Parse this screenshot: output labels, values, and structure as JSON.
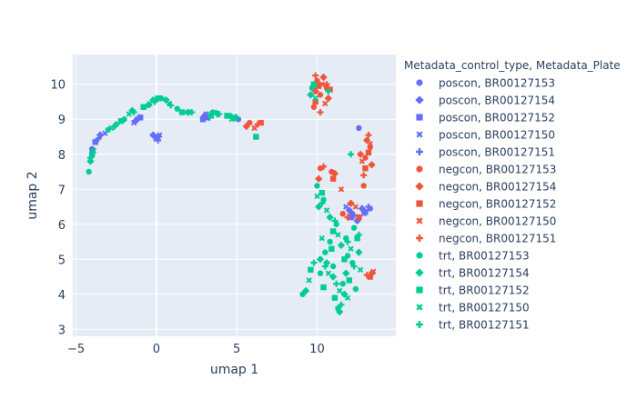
{
  "chart_data": {
    "type": "scatter",
    "title": "",
    "xlabel": "umap 1",
    "ylabel": "umap 2",
    "xlim": [
      -5.2,
      14.9
    ],
    "ylim": [
      2.8,
      10.85
    ],
    "xticks": [
      -5,
      0,
      5,
      10
    ],
    "yticks": [
      3,
      4,
      5,
      6,
      7,
      8,
      9,
      10
    ],
    "xtick_labels": [
      "−5",
      "0",
      "5",
      "10"
    ],
    "ytick_labels": [
      "3",
      "4",
      "5",
      "6",
      "7",
      "8",
      "9",
      "10"
    ],
    "grid": true,
    "legend_title": "Metadata_control_type, Metadata_Plate",
    "legend_position": "right",
    "colors": {
      "poscon": "#636efa",
      "negcon": "#ef553b",
      "trt": "#00cc96",
      "plot_bg": "#e5ecf6",
      "text": "#2a3f5f"
    },
    "series": [
      {
        "name": "poscon, BR00127153",
        "symbol": "circle",
        "color": "#636efa",
        "points": [
          [
            -4.0,
            8.15
          ],
          [
            -1.2,
            9.0
          ],
          [
            0.1,
            8.5
          ],
          [
            3.2,
            9.05
          ],
          [
            5.1,
            9.0
          ],
          [
            12.6,
            8.75
          ],
          [
            12.2,
            6.3
          ],
          [
            13.3,
            6.45
          ]
        ]
      },
      {
        "name": "poscon, BR00127154",
        "symbol": "diamond",
        "color": "#636efa",
        "points": [
          [
            -3.5,
            8.55
          ],
          [
            -1.3,
            8.95
          ],
          [
            -0.2,
            8.55
          ],
          [
            3.0,
            9.1
          ],
          [
            12.0,
            6.4
          ],
          [
            12.8,
            6.45
          ],
          [
            12.5,
            6.1
          ]
        ]
      },
      {
        "name": "poscon, BR00127152",
        "symbol": "square",
        "color": "#636efa",
        "points": [
          [
            -3.8,
            8.35
          ],
          [
            -1.0,
            9.05
          ],
          [
            0.0,
            8.45
          ],
          [
            2.9,
            9.0
          ],
          [
            12.1,
            6.2
          ],
          [
            13.0,
            6.35
          ]
        ]
      },
      {
        "name": "poscon, BR00127150",
        "symbol": "x",
        "color": "#636efa",
        "points": [
          [
            -3.2,
            8.6
          ],
          [
            -1.4,
            8.9
          ],
          [
            0.2,
            8.55
          ],
          [
            3.1,
            9.15
          ],
          [
            11.8,
            6.5
          ],
          [
            12.9,
            6.3
          ]
        ]
      },
      {
        "name": "poscon, BR00127151",
        "symbol": "cross",
        "color": "#636efa",
        "points": [
          [
            -3.6,
            8.45
          ],
          [
            -1.1,
            9.05
          ],
          [
            0.1,
            8.4
          ],
          [
            3.3,
            9.05
          ],
          [
            12.3,
            6.25
          ],
          [
            13.2,
            6.5
          ]
        ]
      },
      {
        "name": "negcon, BR00127153",
        "symbol": "circle",
        "color": "#ef553b",
        "points": [
          [
            10.0,
            10.1
          ],
          [
            10.2,
            9.7
          ],
          [
            9.8,
            9.35
          ],
          [
            10.6,
            9.9
          ],
          [
            13.0,
            7.9
          ],
          [
            13.3,
            8.2
          ],
          [
            12.9,
            7.1
          ],
          [
            10.9,
            7.5
          ],
          [
            5.8,
            8.9
          ],
          [
            10.2,
            7.6
          ],
          [
            11.6,
            6.3
          ],
          [
            13.4,
            4.6
          ]
        ]
      },
      {
        "name": "negcon, BR00127154",
        "symbol": "diamond",
        "color": "#ef553b",
        "points": [
          [
            10.4,
            10.2
          ],
          [
            9.9,
            9.8
          ],
          [
            10.7,
            9.6
          ],
          [
            13.1,
            8.4
          ],
          [
            13.4,
            7.7
          ],
          [
            12.7,
            8.0
          ],
          [
            5.6,
            8.8
          ],
          [
            10.1,
            7.3
          ],
          [
            11.1,
            7.45
          ],
          [
            12.1,
            6.6
          ]
        ]
      },
      {
        "name": "negcon, BR00127152",
        "symbol": "square",
        "color": "#ef553b",
        "points": [
          [
            10.1,
            9.95
          ],
          [
            10.8,
            9.85
          ],
          [
            9.9,
            9.5
          ],
          [
            13.2,
            8.05
          ],
          [
            13.0,
            7.6
          ],
          [
            6.5,
            8.9
          ],
          [
            11.0,
            7.3
          ],
          [
            12.6,
            6.2
          ],
          [
            13.3,
            4.5
          ]
        ]
      },
      {
        "name": "negcon, BR00127150",
        "symbol": "x",
        "color": "#ef553b",
        "points": [
          [
            10.3,
            10.0
          ],
          [
            10.5,
            9.45
          ],
          [
            9.7,
            9.9
          ],
          [
            13.3,
            8.3
          ],
          [
            12.8,
            7.8
          ],
          [
            6.1,
            8.75
          ],
          [
            11.5,
            7.0
          ],
          [
            12.4,
            6.5
          ],
          [
            13.5,
            4.65
          ]
        ]
      },
      {
        "name": "negcon, BR00127151",
        "symbol": "cross",
        "color": "#ef553b",
        "points": [
          [
            9.9,
            10.25
          ],
          [
            10.6,
            10.0
          ],
          [
            10.2,
            9.2
          ],
          [
            13.2,
            8.55
          ],
          [
            12.9,
            7.4
          ],
          [
            6.3,
            8.85
          ],
          [
            10.4,
            7.65
          ],
          [
            11.9,
            6.2
          ],
          [
            13.1,
            4.55
          ]
        ]
      },
      {
        "name": "trt, BR00127153",
        "symbol": "circle",
        "color": "#00cc96",
        "points": [
          [
            -4.2,
            7.5
          ],
          [
            -3.0,
            8.7
          ],
          [
            -2.0,
            9.0
          ],
          [
            -0.5,
            9.4
          ],
          [
            0.3,
            9.6
          ],
          [
            1.3,
            9.3
          ],
          [
            3.5,
            9.2
          ],
          [
            4.6,
            9.1
          ],
          [
            9.7,
            9.9
          ],
          [
            10.0,
            7.1
          ],
          [
            10.4,
            6.7
          ],
          [
            11.2,
            6.0
          ],
          [
            11.8,
            5.6
          ],
          [
            10.5,
            5.2
          ],
          [
            11.0,
            4.8
          ],
          [
            11.6,
            4.3
          ],
          [
            12.2,
            4.9
          ],
          [
            11.3,
            3.6
          ],
          [
            9.1,
            4.0
          ],
          [
            12.4,
            4.15
          ],
          [
            10.2,
            4.6
          ],
          [
            10.8,
            5.5
          ],
          [
            11.9,
            5.1
          ],
          [
            12.3,
            5.9
          ]
        ]
      },
      {
        "name": "trt, BR00127154",
        "symbol": "diamond",
        "color": "#00cc96",
        "points": [
          [
            -4.1,
            7.8
          ],
          [
            -2.5,
            8.85
          ],
          [
            -1.5,
            9.25
          ],
          [
            -0.2,
            9.55
          ],
          [
            0.6,
            9.55
          ],
          [
            2.0,
            9.2
          ],
          [
            3.8,
            9.15
          ],
          [
            4.9,
            9.05
          ],
          [
            9.6,
            9.7
          ],
          [
            10.1,
            6.5
          ],
          [
            10.8,
            6.2
          ],
          [
            11.5,
            5.4
          ],
          [
            10.2,
            5.0
          ],
          [
            11.0,
            4.5
          ],
          [
            11.7,
            4.0
          ],
          [
            12.6,
            5.2
          ],
          [
            11.4,
            3.5
          ],
          [
            9.3,
            4.1
          ],
          [
            10.6,
            4.9
          ],
          [
            11.8,
            4.6
          ]
        ]
      },
      {
        "name": "trt, BR00127152",
        "symbol": "square",
        "color": "#00cc96",
        "points": [
          [
            -4.0,
            8.0
          ],
          [
            -2.2,
            8.95
          ],
          [
            -0.8,
            9.35
          ],
          [
            0.1,
            9.6
          ],
          [
            1.6,
            9.2
          ],
          [
            3.4,
            9.1
          ],
          [
            4.4,
            9.1
          ],
          [
            6.2,
            8.5
          ],
          [
            9.8,
            10.0
          ],
          [
            10.3,
            6.9
          ],
          [
            11.0,
            5.8
          ],
          [
            11.7,
            5.0
          ],
          [
            10.4,
            4.2
          ],
          [
            11.1,
            3.9
          ],
          [
            12.0,
            4.4
          ],
          [
            12.5,
            5.6
          ],
          [
            9.6,
            4.7
          ],
          [
            10.9,
            5.3
          ]
        ]
      },
      {
        "name": "trt, BR00127150",
        "symbol": "x",
        "color": "#00cc96",
        "points": [
          [
            -3.9,
            8.1
          ],
          [
            -2.8,
            8.75
          ],
          [
            -1.7,
            9.15
          ],
          [
            -0.4,
            9.45
          ],
          [
            0.8,
            9.45
          ],
          [
            1.8,
            9.2
          ],
          [
            3.6,
            9.2
          ],
          [
            4.7,
            9.0
          ],
          [
            9.9,
            9.6
          ],
          [
            10.0,
            6.8
          ],
          [
            10.6,
            6.4
          ],
          [
            11.3,
            5.7
          ],
          [
            10.7,
            4.6
          ],
          [
            11.4,
            4.1
          ],
          [
            12.1,
            5.3
          ],
          [
            9.5,
            4.4
          ],
          [
            10.3,
            5.6
          ],
          [
            11.9,
            3.9
          ],
          [
            12.7,
            4.7
          ]
        ]
      },
      {
        "name": "trt, BR00127151",
        "symbol": "cross",
        "color": "#00cc96",
        "points": [
          [
            -4.1,
            7.9
          ],
          [
            -2.6,
            8.8
          ],
          [
            -1.4,
            9.2
          ],
          [
            -0.1,
            9.5
          ],
          [
            0.9,
            9.4
          ],
          [
            2.2,
            9.2
          ],
          [
            3.9,
            9.15
          ],
          [
            5.0,
            9.05
          ],
          [
            10.7,
            9.8
          ],
          [
            12.1,
            8.0
          ],
          [
            10.3,
            6.6
          ],
          [
            11.1,
            6.1
          ],
          [
            11.9,
            5.5
          ],
          [
            10.5,
            4.8
          ],
          [
            11.2,
            4.3
          ],
          [
            12.3,
            4.8
          ],
          [
            11.5,
            3.7
          ],
          [
            9.8,
            4.9
          ],
          [
            12.6,
            5.7
          ]
        ]
      }
    ]
  }
}
